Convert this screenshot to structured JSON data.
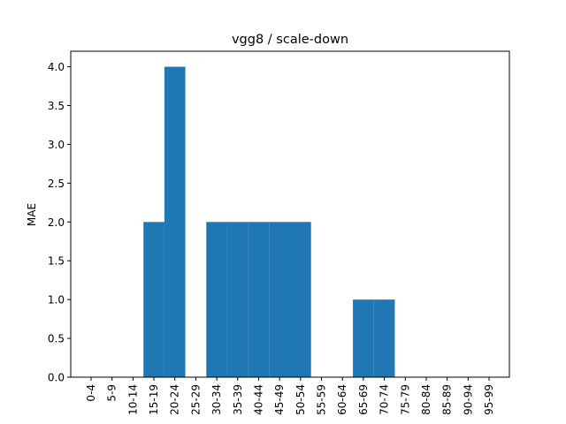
{
  "chart_data": {
    "type": "bar",
    "title": "vgg8 / scale-down",
    "xlabel": "",
    "ylabel": "MAE",
    "categories": [
      "0-4",
      "5-9",
      "10-14",
      "15-19",
      "20-24",
      "25-29",
      "30-34",
      "35-39",
      "40-44",
      "45-49",
      "50-54",
      "55-59",
      "60-64",
      "65-69",
      "70-74",
      "75-79",
      "80-84",
      "85-89",
      "90-94",
      "95-99"
    ],
    "values": [
      0,
      0,
      0,
      2,
      4,
      0,
      2,
      2,
      2,
      2,
      2,
      0,
      0,
      1,
      1,
      0,
      0,
      0,
      0,
      0
    ],
    "ylim": [
      0,
      4.2
    ],
    "yticks": [
      "0.0",
      "0.5",
      "1.0",
      "1.5",
      "2.0",
      "2.5",
      "3.0",
      "3.5",
      "4.0"
    ],
    "grid": false,
    "colors": {
      "bar": "#1f77b4",
      "axis": "#000000"
    }
  }
}
